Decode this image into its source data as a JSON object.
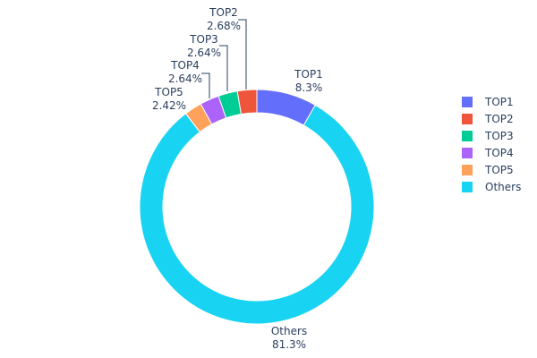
{
  "chart_data": {
    "type": "pie",
    "hole": true,
    "categories": [
      "TOP1",
      "TOP2",
      "TOP3",
      "TOP4",
      "TOP5",
      "Others"
    ],
    "values": [
      8.3,
      2.68,
      2.64,
      2.64,
      2.42,
      81.3
    ],
    "value_labels": [
      "8.3%",
      "2.68%",
      "2.64%",
      "2.64%",
      "2.42%",
      "81.3%"
    ],
    "colors": [
      "#636efa",
      "#EF553B",
      "#00cc96",
      "#ab63fa",
      "#FFA15A",
      "#19d3f3"
    ],
    "legend_position": "right",
    "title": ""
  }
}
